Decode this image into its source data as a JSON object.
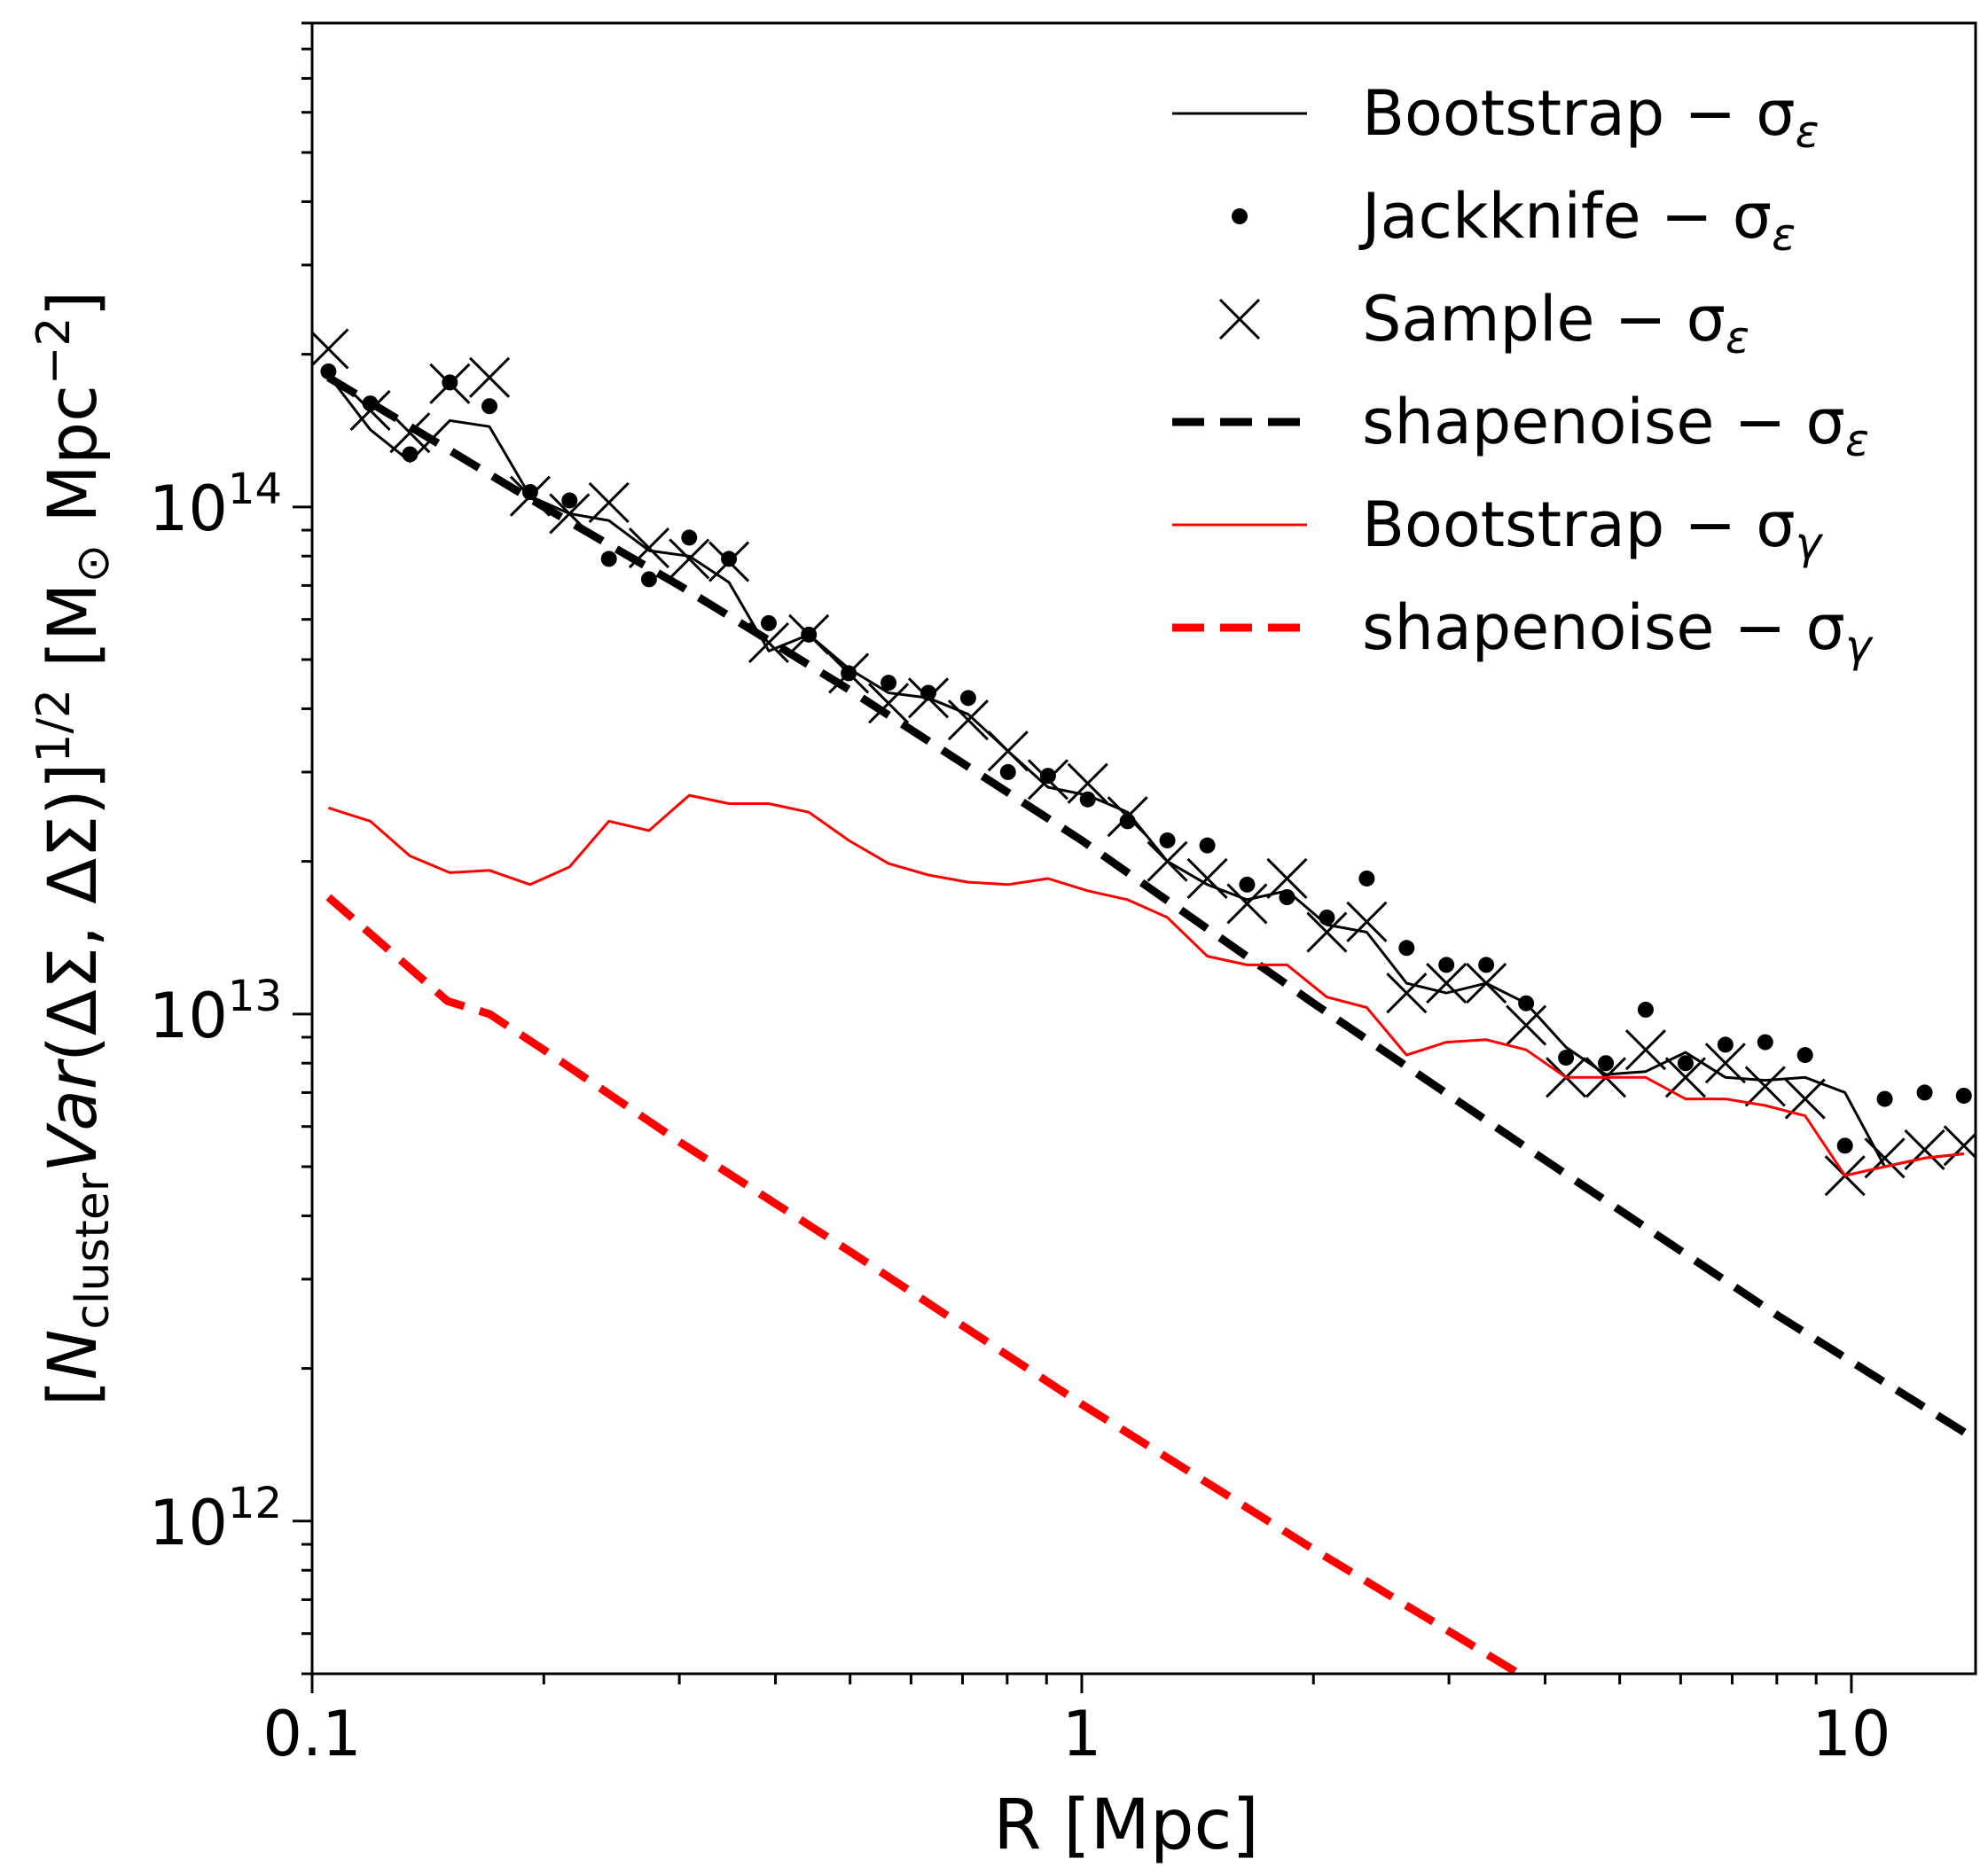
{
  "chart_data": {
    "type": "line",
    "xscale": "log",
    "yscale": "log",
    "xlim": [
      0.1,
      14.5
    ],
    "ylim": [
      500000000000.0,
      900000000000000.0
    ],
    "xlabel": "R [Mpc]",
    "ylabel": {
      "open": "[",
      "N": "N",
      "N_sub": "cluster",
      "Var": "Var",
      "args": "(ΔΣ, ΔΣ)",
      "close": "]",
      "power": "1/2",
      "units": " [M",
      "odot": "⊙",
      "units2": " Mpc",
      "units_power": "−2",
      "units_close": "]"
    },
    "x_ticks": [
      {
        "value": 0.1,
        "label": "0.1"
      },
      {
        "value": 1,
        "label": "1"
      },
      {
        "value": 10,
        "label": "10"
      }
    ],
    "y_ticks": [
      {
        "value": 1000000000000.0,
        "base": "10",
        "exp": "12"
      },
      {
        "value": 10000000000000.0,
        "base": "10",
        "exp": "13"
      },
      {
        "value": 100000000000000.0,
        "base": "10",
        "exp": "14"
      }
    ],
    "legend_position": "top-right",
    "series": [
      {
        "name": "Bootstrap − σ",
        "sub": "ε",
        "style": "line",
        "color": "#000000",
        "width": 3,
        "dash": "",
        "x": [
          0.105,
          0.119,
          0.134,
          0.151,
          0.17,
          0.192,
          0.216,
          0.243,
          0.274,
          0.309,
          0.348,
          0.392,
          0.442,
          0.498,
          0.561,
          0.632,
          0.712,
          0.802,
          0.904,
          1.018,
          1.147,
          1.292,
          1.456,
          1.64,
          1.848,
          2.082,
          2.346,
          2.643,
          2.977,
          3.354,
          3.779,
          4.258,
          4.797,
          5.404,
          6.089,
          6.86,
          7.728,
          8.707,
          9.81,
          11.05,
          12.45,
          14.0
        ],
        "y": [
          182000000000000.0,
          142000000000000.0,
          123000000000000.0,
          148000000000000.0,
          144000000000000.0,
          105000000000000.0,
          97000000000000.0,
          94000000000000.0,
          82000000000000.0,
          80000000000000.0,
          71000000000000.0,
          52000000000000.0,
          56000000000000.0,
          48000000000000.0,
          43000000000000.0,
          42000000000000.0,
          39000000000000.0,
          33000000000000.0,
          28000000000000.0,
          27000000000000.0,
          25000000000000.0,
          20000000000000.0,
          18000000000000.0,
          16800000000000.0,
          17500000000000.0,
          15000000000000.0,
          14500000000000.0,
          11500000000000.0,
          11000000000000.0,
          11500000000000.0,
          10500000000000.0,
          8600000000000.0,
          7600000000000.0,
          7700000000000.0,
          8400000000000.0,
          7500000000000.0,
          7400000000000.0,
          7500000000000.0,
          7000000000000.0,
          5000000000000.0,
          5200000000000.0,
          5300000000000.0
        ]
      },
      {
        "name": "Jackknife − σ",
        "sub": "ε",
        "style": "dot",
        "color": "#000000",
        "r": 9,
        "x": [
          0.105,
          0.119,
          0.134,
          0.151,
          0.17,
          0.192,
          0.216,
          0.243,
          0.274,
          0.309,
          0.348,
          0.392,
          0.442,
          0.498,
          0.561,
          0.632,
          0.712,
          0.802,
          0.904,
          1.018,
          1.147,
          1.292,
          1.456,
          1.64,
          1.848,
          2.082,
          2.346,
          2.643,
          2.977,
          3.354,
          3.779,
          4.258,
          4.797,
          5.404,
          6.089,
          6.86,
          7.728,
          8.707,
          9.81,
          11.05,
          12.45,
          14.0
        ],
        "y": [
          185000000000000.0,
          160000000000000.0,
          127000000000000.0,
          176000000000000.0,
          158000000000000.0,
          107000000000000.0,
          103000000000000.0,
          79000000000000.0,
          72000000000000.0,
          87000000000000.0,
          79000000000000.0,
          59000000000000.0,
          56000000000000.0,
          47000000000000.0,
          45000000000000.0,
          43000000000000.0,
          42000000000000.0,
          30000000000000.0,
          29500000000000.0,
          26500000000000.0,
          24000000000000.0,
          22000000000000.0,
          21500000000000.0,
          18000000000000.0,
          17000000000000.0,
          15500000000000.0,
          18500000000000.0,
          13500000000000.0,
          12500000000000.0,
          12500000000000.0,
          10500000000000.0,
          8200000000000.0,
          8000000000000.0,
          10200000000000.0,
          8000000000000.0,
          8700000000000.0,
          8800000000000.0,
          8300000000000.0,
          5500000000000.0,
          6800000000000.0,
          7000000000000.0,
          6900000000000.0
        ]
      },
      {
        "name": "Sample − σ",
        "sub": "ε",
        "style": "x",
        "color": "#000000",
        "size": 22,
        "x": [
          0.105,
          0.119,
          0.134,
          0.151,
          0.17,
          0.192,
          0.216,
          0.243,
          0.274,
          0.309,
          0.348,
          0.392,
          0.442,
          0.498,
          0.561,
          0.632,
          0.712,
          0.802,
          0.904,
          1.018,
          1.147,
          1.292,
          1.456,
          1.64,
          1.848,
          2.082,
          2.346,
          2.643,
          2.977,
          3.354,
          3.779,
          4.258,
          4.797,
          5.404,
          6.089,
          6.86,
          7.728,
          8.707,
          9.81,
          11.05,
          12.45,
          14.0
        ],
        "y": [
          205000000000000.0,
          155000000000000.0,
          140000000000000.0,
          175000000000000.0,
          180000000000000.0,
          105000000000000.0,
          97000000000000.0,
          102000000000000.0,
          83000000000000.0,
          79000000000000.0,
          78000000000000.0,
          54000000000000.0,
          56000000000000.0,
          47000000000000.0,
          41000000000000.0,
          42000000000000.0,
          38000000000000.0,
          33000000000000.0,
          29000000000000.0,
          28500000000000.0,
          24500000000000.0,
          20000000000000.0,
          18500000000000.0,
          16500000000000.0,
          18500000000000.0,
          14500000000000.0,
          15200000000000.0,
          11000000000000.0,
          11500000000000.0,
          11500000000000.0,
          9500000000000.0,
          7500000000000.0,
          7500000000000.0,
          8500000000000.0,
          7500000000000.0,
          8000000000000.0,
          7200000000000.0,
          6800000000000.0,
          4800000000000.0,
          5200000000000.0,
          5400000000000.0,
          5500000000000.0
        ]
      },
      {
        "name": "shapenoise − σ",
        "sub": "ε",
        "style": "line",
        "color": "#000000",
        "width": 9,
        "dash": "36,18",
        "x": [
          0.105,
          0.15,
          0.2,
          0.3,
          0.5,
          1.0,
          2.0,
          4.0,
          8.0,
          14.5
        ],
        "y": [
          180000000000000.0,
          130000000000000.0,
          100000000000000.0,
          70000000000000.0,
          43500000000000.0,
          22000000000000.0,
          10500000000000.0,
          5150000000000.0,
          2550000000000.0,
          1450000000000.0
        ]
      },
      {
        "name": "Bootstrap − σ",
        "sub": "γ",
        "style": "line",
        "color": "#ff0000",
        "width": 3,
        "dash": "",
        "x": [
          0.105,
          0.119,
          0.134,
          0.151,
          0.17,
          0.192,
          0.216,
          0.243,
          0.274,
          0.309,
          0.348,
          0.392,
          0.442,
          0.498,
          0.561,
          0.632,
          0.712,
          0.802,
          0.904,
          1.018,
          1.147,
          1.292,
          1.456,
          1.64,
          1.848,
          2.082,
          2.346,
          2.643,
          2.977,
          3.354,
          3.779,
          4.258,
          4.797,
          5.404,
          6.089,
          6.86,
          7.728,
          8.707,
          9.81,
          11.05,
          12.45,
          14.0
        ],
        "y": [
          25500000000000.0,
          24000000000000.0,
          20500000000000.0,
          19000000000000.0,
          19200000000000.0,
          18000000000000.0,
          19500000000000.0,
          24000000000000.0,
          23000000000000.0,
          27000000000000.0,
          26000000000000.0,
          26000000000000.0,
          25000000000000.0,
          22000000000000.0,
          19800000000000.0,
          18800000000000.0,
          18200000000000.0,
          18000000000000.0,
          18500000000000.0,
          17500000000000.0,
          16800000000000.0,
          15500000000000.0,
          13000000000000.0,
          12500000000000.0,
          12500000000000.0,
          10800000000000.0,
          10300000000000.0,
          8300000000000.0,
          8800000000000.0,
          8900000000000.0,
          8500000000000.0,
          7500000000000.0,
          7500000000000.0,
          7500000000000.0,
          6800000000000.0,
          6800000000000.0,
          6600000000000.0,
          6300000000000.0,
          4800000000000.0,
          5000000000000.0,
          5200000000000.0,
          5300000000000.0
        ]
      },
      {
        "name": "shapenoise − σ",
        "sub": "γ",
        "style": "line",
        "color": "#ff0000",
        "width": 9,
        "dash": "36,18",
        "x": [
          0.105,
          0.15,
          0.17,
          0.2,
          0.3,
          0.5,
          1.0,
          2.0,
          3.7
        ],
        "y": [
          17000000000000.0,
          10600000000000.0,
          10000000000000.0,
          8500000000000.0,
          5600000000000.0,
          3400000000000.0,
          1700000000000.0,
          880000000000.0,
          500000000000.0
        ]
      }
    ]
  }
}
